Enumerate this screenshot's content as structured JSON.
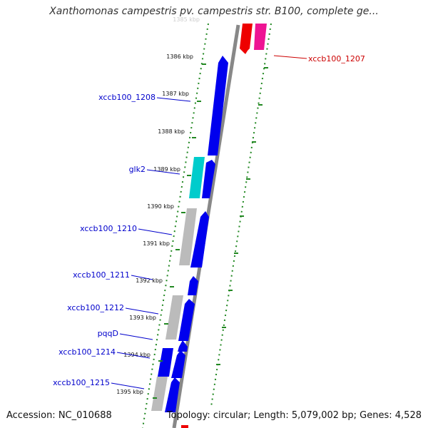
{
  "title": "Xanthomonas campestris pv. campestris str. B100, complete ge...",
  "footer": {
    "accession": "Accession: NC_010688",
    "summary": "Topology: circular; Length: 5,079,002 bp; Genes: 4,528"
  },
  "ticks": {
    "faded": "1385 kbp",
    "labels": [
      "1386 kbp",
      "1387 kbp",
      "1388 kbp",
      "1389 kbp",
      "1390 kbp",
      "1391 kbp",
      "1392 kbp",
      "1393 kbp",
      "1394 kbp",
      "1395 kbp"
    ]
  },
  "gene_labels": [
    {
      "text": "xccb100_1207",
      "color": "#cc0000"
    },
    {
      "text": "xccb100_1208",
      "color": "#0000cc"
    },
    {
      "text": "glk2",
      "color": "#0000cc"
    },
    {
      "text": "xccb100_1210",
      "color": "#0000cc"
    },
    {
      "text": "xccb100_1211",
      "color": "#0000cc"
    },
    {
      "text": "xccb100_1212",
      "color": "#0000cc"
    },
    {
      "text": "pqqD",
      "color": "#0000cc"
    },
    {
      "text": "xccb100_1214",
      "color": "#0000cc"
    },
    {
      "text": "xccb100_1215",
      "color": "#0000cc"
    }
  ],
  "feature_colors": {
    "forward_cds": "#0000ee",
    "reverse_cds": "#ee0000",
    "trna": "#ee1493",
    "glk2": "#00cccc",
    "orf": "#bbbbbb",
    "backbone": "#888888",
    "tick": "#228822"
  }
}
